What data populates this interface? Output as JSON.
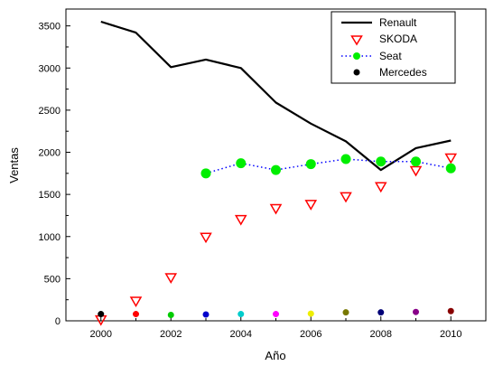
{
  "chart_data": {
    "type": "line",
    "title": "",
    "xlabel": "Año",
    "ylabel": "Ventas",
    "xlim": [
      1999,
      2011
    ],
    "ylim": [
      0,
      3700
    ],
    "x_ticks": [
      2000,
      2002,
      2004,
      2006,
      2008,
      2010
    ],
    "y_ticks": [
      0,
      500,
      1000,
      1500,
      2000,
      2500,
      3000,
      3500
    ],
    "grid": false,
    "legend_position": "top-right",
    "series": [
      {
        "name": "Renault",
        "style": "line",
        "color": "#000000",
        "x": [
          2000,
          2001,
          2002,
          2003,
          2004,
          2005,
          2006,
          2007,
          2008,
          2009,
          2010
        ],
        "y": [
          3550,
          3420,
          3010,
          3100,
          3000,
          2590,
          2340,
          2130,
          1790,
          2050,
          2140
        ]
      },
      {
        "name": "SKODA",
        "style": "triangle-down",
        "color": "#ff0000",
        "x": [
          2000,
          2001,
          2002,
          2003,
          2004,
          2005,
          2006,
          2007,
          2008,
          2009,
          2010
        ],
        "y": [
          10,
          230,
          510,
          990,
          1200,
          1330,
          1380,
          1470,
          1590,
          1780,
          1930
        ]
      },
      {
        "name": "Seat",
        "style": "dotted-line-circle",
        "color": "#00ee00",
        "line_color": "#0000ff",
        "x": [
          2003,
          2004,
          2005,
          2006,
          2007,
          2008,
          2009,
          2010
        ],
        "y": [
          1750,
          1870,
          1790,
          1860,
          1920,
          1890,
          1890,
          1810
        ]
      },
      {
        "name": "Mercedes",
        "style": "dot",
        "color": "#000000",
        "x": [
          2000,
          2001,
          2002,
          2003,
          2004,
          2005,
          2006,
          2007,
          2008,
          2009,
          2010
        ],
        "y": [
          80,
          80,
          70,
          75,
          80,
          80,
          85,
          100,
          100,
          105,
          115
        ],
        "point_colors": [
          "#000000",
          "#ff0000",
          "#00cc00",
          "#0000cc",
          "#00cccc",
          "#ff00ff",
          "#eeee00",
          "#777700",
          "#000077",
          "#880088",
          "#880000"
        ]
      }
    ]
  }
}
